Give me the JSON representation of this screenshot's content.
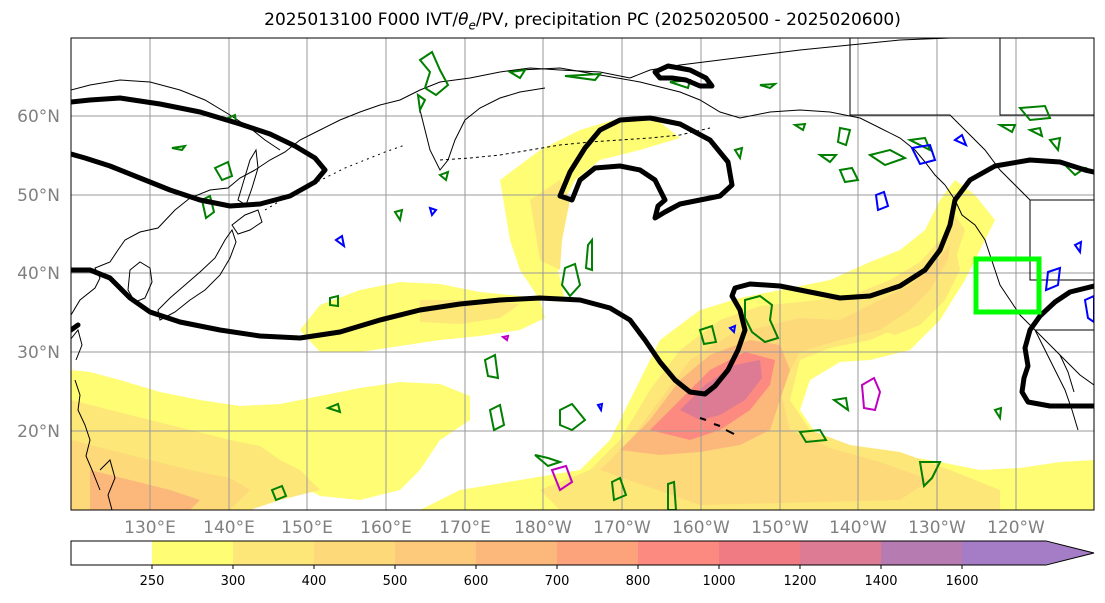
{
  "title": {
    "prefix": "2025013100 F000 IVT/",
    "theta": "θ",
    "theta_sub": "e",
    "suffix": "/PV, precipitation PC (2025020500 - 2025020600)"
  },
  "lat_labels": [
    "60°N",
    "50°N",
    "40°N",
    "30°N",
    "20°N"
  ],
  "lon_labels": [
    "130°E",
    "140°E",
    "150°E",
    "160°E",
    "170°E",
    "180°W",
    "170°W",
    "160°W",
    "150°W",
    "140°W",
    "130°W",
    "120°W"
  ],
  "colorbar": {
    "ticks": [
      "250",
      "300",
      "400",
      "500",
      "600",
      "700",
      "800",
      "1000",
      "1200",
      "1400",
      "1600"
    ],
    "colors": [
      "#ffffff",
      "#fffd74",
      "#fde778",
      "#fdd97a",
      "#fdca7c",
      "#fcb87b",
      "#fca37c",
      "#fc8a80",
      "#f07b82",
      "#dd7a94",
      "#b67cb2",
      "#a57dc6"
    ]
  },
  "map": {
    "ivt_colors": [
      "#fffd74",
      "#fde778",
      "#fdd97a",
      "#fcb87b",
      "#fc8a80",
      "#dd7a94"
    ],
    "contour_colors": {
      "theta_e": "#000000",
      "pv_green": "#007f00",
      "pv_blue": "#0000ff",
      "pv_magenta": "#c000c0",
      "box": "#00ff00"
    }
  }
}
